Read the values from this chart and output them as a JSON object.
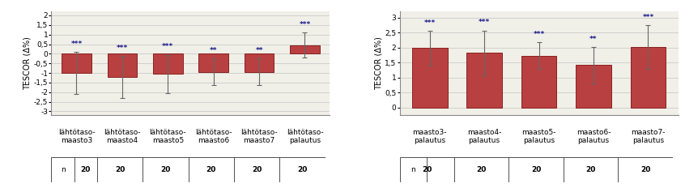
{
  "left": {
    "categories": [
      "lähtötaso-\nmaasto3",
      "lähtötaso-\nmaasto4",
      "lähtötaso-\nmaasto5",
      "lähtötaso-\nmaasto6",
      "lähtötaso-\nmaasto7",
      "lähtötaso-\npalautus"
    ],
    "values": [
      -1.0,
      -1.2,
      -1.05,
      -0.95,
      -0.95,
      0.45
    ],
    "errors": [
      1.1,
      1.1,
      1.0,
      0.7,
      0.7,
      0.65
    ],
    "significance": [
      "***",
      "***",
      "***",
      "**",
      "**",
      "***"
    ],
    "n_values": [
      20,
      20,
      20,
      20,
      20,
      20
    ],
    "ylim": [
      -3.2,
      2.2
    ],
    "yticks": [
      -3,
      -2.5,
      -2,
      -1.5,
      -1,
      -0.5,
      0,
      0.5,
      1,
      1.5,
      2
    ],
    "ytick_labels": [
      "-3",
      "-2,5",
      "-2",
      "-1,5",
      "-1",
      "-0,5",
      "0",
      "0,5",
      "1",
      "1,5",
      "2"
    ],
    "ylabel": "TESCOR (Δ%)"
  },
  "right": {
    "categories": [
      "maasto3-\npalautus",
      "maasto4-\npalautus",
      "maasto5-\npalautus",
      "maasto6-\npalautus",
      "maasto7-\npalautus"
    ],
    "values": [
      1.98,
      1.82,
      1.73,
      1.42,
      2.02
    ],
    "errors": [
      0.57,
      0.75,
      0.45,
      0.6,
      0.72
    ],
    "significance": [
      "***",
      "***",
      "***",
      "**",
      "***"
    ],
    "n_values": [
      20,
      20,
      20,
      20,
      20
    ],
    "ylim": [
      -0.25,
      3.2
    ],
    "yticks": [
      0,
      0.5,
      1,
      1.5,
      2,
      2.5,
      3
    ],
    "ytick_labels": [
      "0",
      "0,5",
      "1",
      "1,5",
      "2",
      "2,5",
      "3"
    ],
    "ylabel": "TESCOR (Δ%)"
  },
  "bar_color": "#b94040",
  "bar_edge_color": "#8a2020",
  "error_color": "#666666",
  "sig_color": "#1a1a8c",
  "background_color": "#f0f0e8",
  "grid_color": "#d0d0d0",
  "table_line_color": "#333333"
}
